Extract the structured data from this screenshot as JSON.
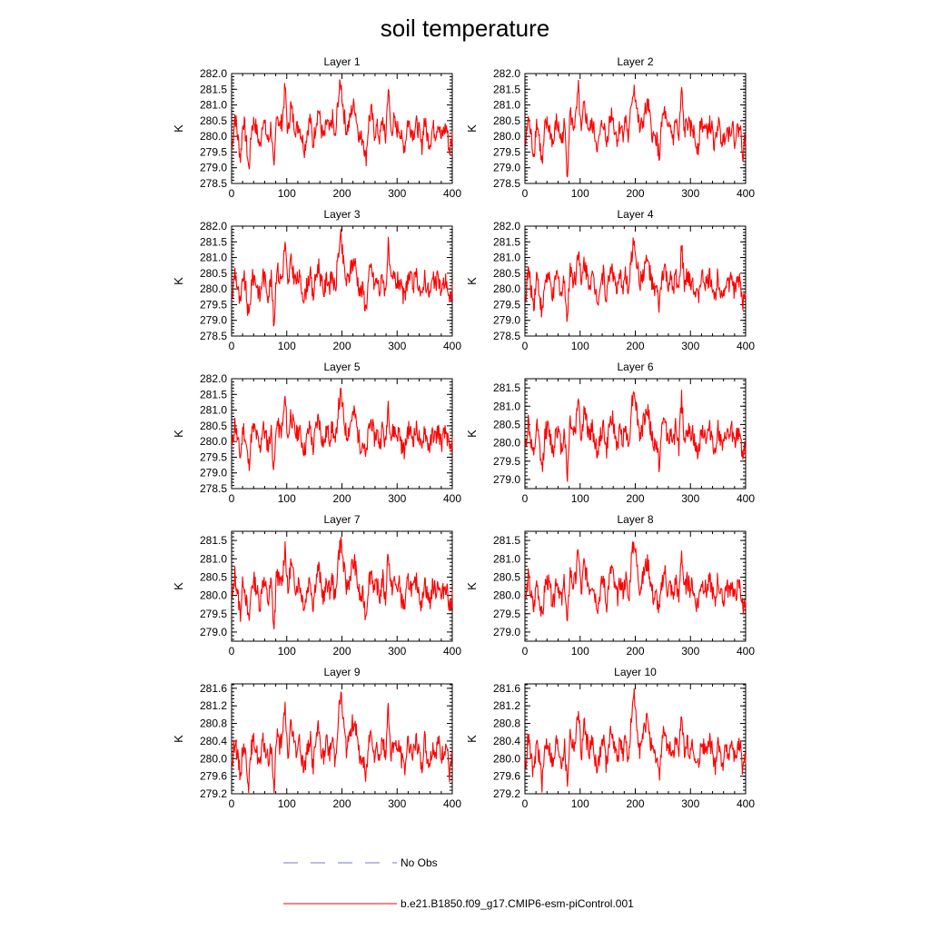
{
  "chart_data": {
    "title": "soil temperature",
    "type": "line",
    "x_label": "",
    "y_label": "K",
    "xlim": [
      0,
      400
    ],
    "x_ticks": [
      0,
      100,
      200,
      300,
      400
    ],
    "colors": {
      "model": "#ff0000",
      "obs": "#7777cc"
    },
    "legend": [
      {
        "label": "No Obs",
        "style": "dashed",
        "color": "#7777cc"
      },
      {
        "label": "b.e21.B1850.f09_g17.CMIP6-esm-piControl.001",
        "style": "solid",
        "color": "#ff0000"
      }
    ],
    "series_note": "Annual mean soil temperature per model year (years 1-400); values sampled from plotted curves.",
    "panels": [
      {
        "title": "Layer 1",
        "ylim": [
          278.5,
          282.0
        ],
        "y_ticks": [
          "282.0",
          "281.5",
          "281.0",
          "280.5",
          "280.0",
          "279.5",
          "279.0",
          "278.5"
        ],
        "values": [
          279.6,
          280.7,
          280.0,
          279.3,
          280.6,
          279.9,
          278.9,
          280.3,
          280.5,
          280.1,
          279.6,
          280.6,
          280.2,
          279.8,
          280.4,
          278.7,
          280.9,
          280.3,
          280.5,
          281.6,
          280.0,
          281.0,
          280.5,
          280.2,
          280.4,
          280.0,
          279.6,
          280.2,
          280.6,
          279.7,
          280.4,
          280.9,
          280.2,
          279.9,
          280.5,
          280.1,
          280.6,
          279.8,
          281.2,
          281.7,
          280.8,
          280.2,
          280.4,
          280.9,
          281.0,
          280.3,
          279.9,
          280.0,
          279.2,
          280.5,
          280.8,
          280.1,
          280.3,
          279.9,
          280.6,
          279.8,
          281.6,
          280.1,
          280.5,
          280.2,
          280.3,
          279.8,
          279.7,
          280.5,
          280.3,
          280.1,
          280.4,
          280.2,
          279.6,
          280.6,
          280.0,
          279.8,
          280.3,
          280.1,
          280.5,
          279.9,
          280.2,
          280.3,
          279.5,
          280.0
        ]
      },
      {
        "title": "Layer 2",
        "ylim": [
          278.5,
          282.0
        ],
        "y_ticks": [
          "282.0",
          "281.5",
          "281.0",
          "280.5",
          "280.0",
          "279.5",
          "279.0",
          "278.5"
        ],
        "values": [
          279.7,
          280.6,
          280.0,
          279.4,
          280.5,
          279.9,
          279.0,
          280.3,
          280.4,
          280.1,
          279.7,
          280.5,
          280.2,
          279.8,
          280.4,
          278.8,
          280.8,
          280.3,
          280.5,
          281.5,
          280.0,
          281.0,
          280.5,
          280.2,
          280.4,
          280.0,
          279.6,
          280.2,
          280.5,
          279.7,
          280.4,
          280.8,
          280.2,
          279.9,
          280.4,
          280.1,
          280.6,
          279.8,
          281.1,
          281.6,
          280.8,
          280.2,
          280.4,
          280.8,
          281.0,
          280.3,
          279.9,
          280.0,
          279.3,
          280.5,
          280.8,
          280.1,
          280.3,
          279.9,
          280.6,
          279.8,
          281.5,
          280.1,
          280.5,
          280.2,
          280.3,
          279.8,
          279.7,
          280.5,
          280.3,
          280.1,
          280.4,
          280.2,
          279.6,
          280.5,
          280.0,
          279.8,
          280.3,
          280.1,
          280.4,
          279.9,
          280.2,
          280.3,
          279.5,
          280.0
        ]
      },
      {
        "title": "Layer 3",
        "ylim": [
          278.5,
          282.0
        ],
        "y_ticks": [
          "282.0",
          "281.5",
          "281.0",
          "280.5",
          "280.0",
          "279.5",
          "279.0",
          "278.5"
        ],
        "values": [
          279.7,
          280.6,
          280.0,
          279.4,
          280.5,
          279.9,
          279.0,
          280.3,
          280.4,
          280.1,
          279.7,
          280.5,
          280.2,
          279.8,
          280.4,
          278.8,
          280.8,
          280.3,
          280.4,
          281.5,
          280.0,
          280.9,
          280.5,
          280.2,
          280.4,
          280.0,
          279.7,
          280.2,
          280.5,
          279.7,
          280.4,
          280.8,
          280.2,
          279.9,
          280.4,
          280.1,
          280.5,
          279.8,
          281.1,
          281.6,
          280.8,
          280.2,
          280.4,
          280.8,
          280.9,
          280.3,
          279.9,
          280.0,
          279.3,
          280.4,
          280.7,
          280.1,
          280.3,
          279.9,
          280.5,
          279.8,
          281.4,
          280.1,
          280.4,
          280.2,
          280.3,
          279.8,
          279.7,
          280.4,
          280.3,
          280.1,
          280.4,
          280.2,
          279.6,
          280.5,
          280.0,
          279.8,
          280.3,
          280.1,
          280.4,
          279.9,
          280.2,
          280.3,
          279.5,
          280.0
        ]
      },
      {
        "title": "Layer 4",
        "ylim": [
          278.5,
          282.0
        ],
        "y_ticks": [
          "282.0",
          "281.5",
          "281.0",
          "280.5",
          "280.0",
          "279.5",
          "279.0",
          "278.5"
        ],
        "values": [
          279.7,
          280.6,
          280.0,
          279.5,
          280.5,
          279.9,
          279.1,
          280.3,
          280.4,
          280.1,
          279.7,
          280.5,
          280.2,
          279.8,
          280.4,
          278.9,
          280.8,
          280.3,
          280.4,
          281.4,
          280.0,
          280.9,
          280.5,
          280.2,
          280.4,
          280.0,
          279.7,
          280.2,
          280.5,
          279.7,
          280.4,
          280.8,
          280.2,
          279.9,
          280.4,
          280.1,
          280.5,
          279.8,
          281.0,
          281.6,
          280.8,
          280.2,
          280.4,
          280.8,
          280.9,
          280.3,
          279.9,
          280.0,
          279.4,
          280.4,
          280.7,
          280.1,
          280.3,
          279.9,
          280.5,
          279.8,
          281.4,
          280.1,
          280.4,
          280.2,
          280.3,
          279.8,
          279.7,
          280.4,
          280.3,
          280.1,
          280.4,
          280.2,
          279.6,
          280.5,
          280.0,
          279.8,
          280.3,
          280.1,
          280.4,
          279.9,
          280.2,
          280.3,
          279.5,
          280.0
        ]
      },
      {
        "title": "Layer 5",
        "ylim": [
          278.5,
          282.0
        ],
        "y_ticks": [
          "282.0",
          "281.5",
          "281.0",
          "280.5",
          "280.0",
          "279.5",
          "279.0",
          "278.5"
        ],
        "values": [
          279.8,
          280.6,
          280.0,
          279.5,
          280.5,
          279.9,
          279.2,
          280.3,
          280.4,
          280.1,
          279.7,
          280.5,
          280.2,
          279.8,
          280.4,
          279.0,
          280.7,
          280.3,
          280.4,
          281.4,
          280.0,
          280.9,
          280.5,
          280.2,
          280.4,
          280.0,
          279.7,
          280.2,
          280.5,
          279.7,
          280.4,
          280.8,
          280.2,
          279.9,
          280.4,
          280.1,
          280.5,
          279.8,
          281.0,
          281.5,
          280.8,
          280.2,
          280.4,
          280.8,
          280.9,
          280.3,
          279.9,
          280.0,
          279.4,
          280.4,
          280.7,
          280.1,
          280.3,
          279.9,
          280.5,
          279.8,
          281.3,
          280.1,
          280.4,
          280.2,
          280.3,
          279.8,
          279.7,
          280.4,
          280.3,
          280.1,
          280.4,
          280.2,
          279.6,
          280.5,
          280.0,
          279.8,
          280.3,
          280.1,
          280.4,
          279.9,
          280.2,
          280.3,
          279.6,
          280.0
        ]
      },
      {
        "title": "Layer 6",
        "ylim": [
          278.75,
          281.75
        ],
        "y_ticks": [
          "281.5",
          "281.0",
          "280.5",
          "280.0",
          "279.5",
          "279.0"
        ],
        "values": [
          279.8,
          280.6,
          280.0,
          279.5,
          280.5,
          279.9,
          279.2,
          280.3,
          280.4,
          280.1,
          279.7,
          280.5,
          280.2,
          279.8,
          280.4,
          279.0,
          280.7,
          280.3,
          280.4,
          281.4,
          280.0,
          280.9,
          280.5,
          280.2,
          280.4,
          280.0,
          279.7,
          280.2,
          280.5,
          279.7,
          280.4,
          280.8,
          280.2,
          279.9,
          280.4,
          280.1,
          280.5,
          279.8,
          281.0,
          281.5,
          280.8,
          280.2,
          280.4,
          280.8,
          280.9,
          280.3,
          279.9,
          280.0,
          279.4,
          280.4,
          280.7,
          280.1,
          280.3,
          279.9,
          280.5,
          279.8,
          281.3,
          280.1,
          280.4,
          280.2,
          280.3,
          279.8,
          279.7,
          280.4,
          280.3,
          280.1,
          280.4,
          280.2,
          279.6,
          280.5,
          280.0,
          279.8,
          280.3,
          280.1,
          280.4,
          279.9,
          280.2,
          280.3,
          279.6,
          280.0
        ]
      },
      {
        "title": "Layer 7",
        "ylim": [
          278.75,
          281.75
        ],
        "y_ticks": [
          "281.5",
          "281.0",
          "280.5",
          "280.0",
          "279.5",
          "279.0"
        ],
        "values": [
          279.8,
          280.6,
          280.0,
          279.5,
          280.5,
          279.9,
          279.2,
          280.3,
          280.4,
          280.1,
          279.7,
          280.5,
          280.2,
          279.8,
          280.4,
          279.0,
          280.7,
          280.3,
          280.4,
          281.4,
          280.0,
          280.9,
          280.5,
          280.2,
          280.4,
          280.0,
          279.7,
          280.2,
          280.5,
          279.7,
          280.4,
          280.8,
          280.2,
          279.9,
          280.4,
          280.1,
          280.5,
          279.8,
          281.0,
          281.5,
          280.8,
          280.2,
          280.4,
          280.8,
          280.9,
          280.3,
          279.9,
          280.0,
          279.4,
          280.4,
          280.7,
          280.1,
          280.3,
          279.9,
          280.5,
          279.8,
          281.3,
          280.1,
          280.4,
          280.2,
          280.3,
          279.8,
          279.7,
          280.4,
          280.3,
          280.1,
          280.4,
          280.2,
          279.6,
          280.5,
          280.0,
          279.8,
          280.3,
          280.1,
          280.4,
          279.9,
          280.2,
          280.3,
          279.6,
          280.0
        ]
      },
      {
        "title": "Layer 8",
        "ylim": [
          278.75,
          281.75
        ],
        "y_ticks": [
          "281.5",
          "281.0",
          "280.5",
          "280.0",
          "279.5",
          "279.0"
        ],
        "values": [
          279.8,
          280.5,
          280.0,
          279.6,
          280.4,
          279.9,
          279.3,
          280.3,
          280.4,
          280.1,
          279.7,
          280.5,
          280.2,
          279.8,
          280.4,
          279.1,
          280.7,
          280.3,
          280.4,
          281.3,
          280.0,
          280.9,
          280.5,
          280.2,
          280.4,
          280.0,
          279.7,
          280.2,
          280.5,
          279.7,
          280.4,
          280.8,
          280.2,
          279.9,
          280.4,
          280.1,
          280.5,
          279.8,
          281.0,
          281.5,
          280.8,
          280.2,
          280.4,
          280.8,
          280.9,
          280.3,
          279.9,
          280.0,
          279.5,
          280.4,
          280.7,
          280.1,
          280.3,
          279.9,
          280.5,
          279.8,
          281.3,
          280.1,
          280.4,
          280.2,
          280.3,
          279.8,
          279.8,
          280.4,
          280.3,
          280.1,
          280.4,
          280.2,
          279.7,
          280.5,
          280.0,
          279.8,
          280.3,
          280.1,
          280.4,
          279.9,
          280.2,
          280.3,
          279.6,
          280.0
        ]
      },
      {
        "title": "Layer 9",
        "ylim": [
          279.2,
          281.7
        ],
        "y_ticks": [
          "281.6",
          "281.2",
          "280.8",
          "280.4",
          "280.0",
          "279.6",
          "279.2"
        ],
        "values": [
          279.8,
          280.5,
          280.0,
          279.6,
          280.4,
          280.0,
          279.4,
          280.3,
          280.4,
          280.1,
          279.8,
          280.4,
          280.2,
          279.9,
          280.3,
          279.3,
          280.6,
          280.3,
          280.4,
          281.2,
          280.0,
          280.8,
          280.4,
          280.2,
          280.4,
          280.0,
          279.8,
          280.2,
          280.5,
          279.8,
          280.4,
          280.7,
          280.2,
          280.0,
          280.4,
          280.1,
          280.5,
          279.9,
          280.9,
          281.5,
          280.8,
          280.2,
          280.4,
          280.8,
          280.9,
          280.3,
          280.0,
          280.0,
          279.5,
          280.4,
          280.7,
          280.1,
          280.3,
          280.0,
          280.5,
          279.9,
          281.2,
          280.1,
          280.4,
          280.2,
          280.3,
          279.9,
          279.8,
          280.4,
          280.3,
          280.1,
          280.4,
          280.2,
          279.7,
          280.5,
          280.0,
          279.9,
          280.3,
          280.1,
          280.4,
          280.0,
          280.2,
          280.3,
          279.6,
          280.0
        ]
      },
      {
        "title": "Layer 10",
        "ylim": [
          279.2,
          281.7
        ],
        "y_ticks": [
          "281.6",
          "281.2",
          "280.8",
          "280.4",
          "280.0",
          "279.6",
          "279.2"
        ],
        "values": [
          279.8,
          280.5,
          280.0,
          279.6,
          280.4,
          280.0,
          279.4,
          280.3,
          280.4,
          280.1,
          279.8,
          280.4,
          280.2,
          279.9,
          280.3,
          279.4,
          280.6,
          280.3,
          280.4,
          281.2,
          280.0,
          280.8,
          280.4,
          280.2,
          280.4,
          280.0,
          279.8,
          280.2,
          280.5,
          279.8,
          280.4,
          280.7,
          280.2,
          280.0,
          280.4,
          280.1,
          280.5,
          279.9,
          280.9,
          281.4,
          280.8,
          280.2,
          280.4,
          280.8,
          280.9,
          280.3,
          280.0,
          280.0,
          279.6,
          280.4,
          280.7,
          280.1,
          280.3,
          280.0,
          280.5,
          279.9,
          281.2,
          280.1,
          280.4,
          280.2,
          280.3,
          279.9,
          279.8,
          280.4,
          280.3,
          280.1,
          280.4,
          280.2,
          279.7,
          280.5,
          280.0,
          279.9,
          280.3,
          280.1,
          280.4,
          280.0,
          280.2,
          280.3,
          279.7,
          280.0
        ]
      }
    ]
  }
}
